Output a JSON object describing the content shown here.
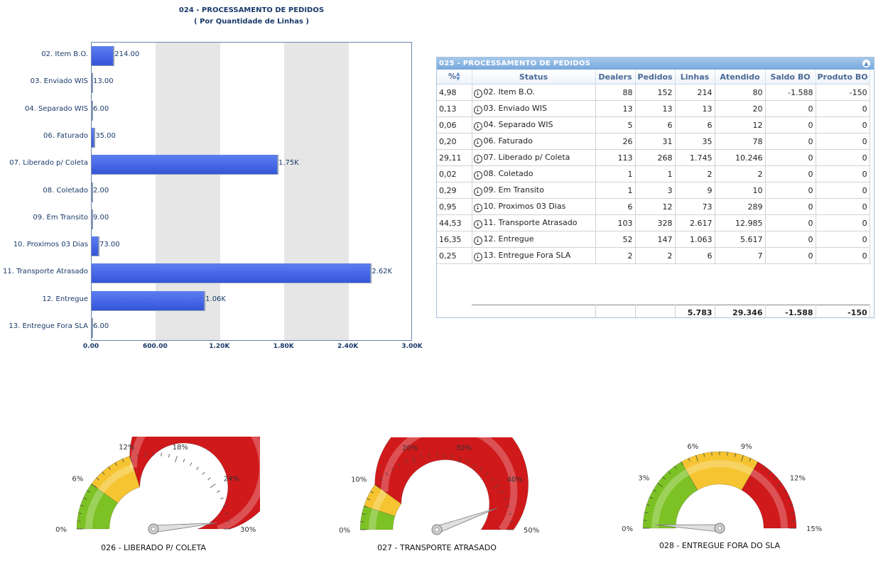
{
  "bar_chart": {
    "title": "024 - PROCESSAMENTO DE PEDIDOS",
    "subtitle": "( Por Quantidade de Linhas )",
    "x_ticks": [
      "0.00",
      "600.00",
      "1.20K",
      "1.80K",
      "2.40K",
      "3.00K"
    ]
  },
  "chart_data": [
    {
      "type": "bar",
      "orientation": "horizontal",
      "title": "024 - PROCESSAMENTO DE PEDIDOS",
      "subtitle": "( Por Quantidade de Linhas )",
      "categories": [
        "02. Item B.O.",
        "03. Enviado WIS",
        "04. Separado WIS",
        "06. Faturado",
        "07. Liberado p/ Coleta",
        "08. Coletado",
        "09. Em Transito",
        "10. Proximos 03 Dias",
        "11. Transporte Atrasado",
        "12. Entregue",
        "13. Entregue Fora SLA"
      ],
      "values": [
        214,
        13,
        6,
        35,
        1745,
        2,
        9,
        73,
        2617,
        1063,
        6
      ],
      "value_labels": [
        "214.00",
        "13.00",
        "6.00",
        "35.00",
        "1.75K",
        "2.00",
        "9.00",
        "73.00",
        "2.62K",
        "1.06K",
        "6.00"
      ],
      "xlim": [
        0,
        3000
      ],
      "grid": "alternating bands",
      "colors": {
        "bar": "#4567e6",
        "band": "#e6e6e6"
      }
    },
    {
      "type": "gauge",
      "title": "026 - LIBERADO P/ COLETA",
      "min": 0,
      "max": 30,
      "tick_labels": [
        "0%",
        "6%",
        "12%",
        "18%",
        "24%",
        "30%"
      ],
      "bands": [
        {
          "from": 0,
          "to": 6,
          "color": "#7dc224"
        },
        {
          "from": 6,
          "to": 12,
          "color": "#f5c430"
        },
        {
          "from": 12,
          "to": 30,
          "color": "#d0191b"
        }
      ],
      "value": 29.11
    },
    {
      "type": "gauge",
      "title": "027 - TRANSPORTE ATRASADO",
      "min": 0,
      "max": 50,
      "tick_labels": [
        "0%",
        "10%",
        "20%",
        "30%",
        "40%",
        "50%"
      ],
      "bands": [
        {
          "from": 0,
          "to": 5,
          "color": "#7dc224"
        },
        {
          "from": 5,
          "to": 10,
          "color": "#f5c430"
        },
        {
          "from": 10,
          "to": 50,
          "color": "#d0191b"
        }
      ],
      "value": 44.53
    },
    {
      "type": "gauge",
      "title": "028 - ENTREGUE FORA DO SLA",
      "min": 0,
      "max": 15,
      "tick_labels": [
        "0%",
        "3%",
        "6%",
        "9%",
        "12%",
        "15%"
      ],
      "bands": [
        {
          "from": 0,
          "to": 5,
          "color": "#7dc224"
        },
        {
          "from": 5,
          "to": 10,
          "color": "#f5c430"
        },
        {
          "from": 10,
          "to": 15,
          "color": "#d0191b"
        }
      ],
      "value": 0.25
    }
  ],
  "grid": {
    "title": "025 - PROCESSAMENTO DE PEDIDOS",
    "columns": [
      "%",
      "Status",
      "Dealers",
      "Pedidos",
      "Linhas",
      "Atendido",
      "Saldo BO",
      "Produto BO"
    ],
    "rows": [
      [
        "4,98",
        "02. Item B.O.",
        "88",
        "152",
        "214",
        "80",
        "-1.588",
        "-150"
      ],
      [
        "0,13",
        "03. Enviado WIS",
        "13",
        "13",
        "13",
        "20",
        "0",
        "0"
      ],
      [
        "0,06",
        "04. Separado WIS",
        "5",
        "6",
        "6",
        "12",
        "0",
        "0"
      ],
      [
        "0,20",
        "06. Faturado",
        "26",
        "31",
        "35",
        "78",
        "0",
        "0"
      ],
      [
        "29,11",
        "07. Liberado p/ Coleta",
        "113",
        "268",
        "1.745",
        "10.246",
        "0",
        "0"
      ],
      [
        "0,02",
        "08. Coletado",
        "1",
        "1",
        "2",
        "2",
        "0",
        "0"
      ],
      [
        "0,29",
        "09. Em Transito",
        "1",
        "3",
        "9",
        "10",
        "0",
        "0"
      ],
      [
        "0,95",
        "10. Proximos 03 Dias",
        "6",
        "12",
        "73",
        "289",
        "0",
        "0"
      ],
      [
        "44,53",
        "11. Transporte Atrasado",
        "103",
        "328",
        "2.617",
        "12.985",
        "0",
        "0"
      ],
      [
        "16,35",
        "12. Entregue",
        "52",
        "147",
        "1.063",
        "5.617",
        "0",
        "0"
      ],
      [
        "0,25",
        "13. Entregue Fora SLA",
        "2",
        "2",
        "6",
        "7",
        "0",
        "0"
      ]
    ],
    "totals": [
      "",
      "",
      "",
      "",
      "5.783",
      "29.346",
      "-1.588",
      "-150"
    ],
    "colors": {
      "header_bg": "#8bb6e2",
      "header_text": "#ffffff"
    }
  }
}
